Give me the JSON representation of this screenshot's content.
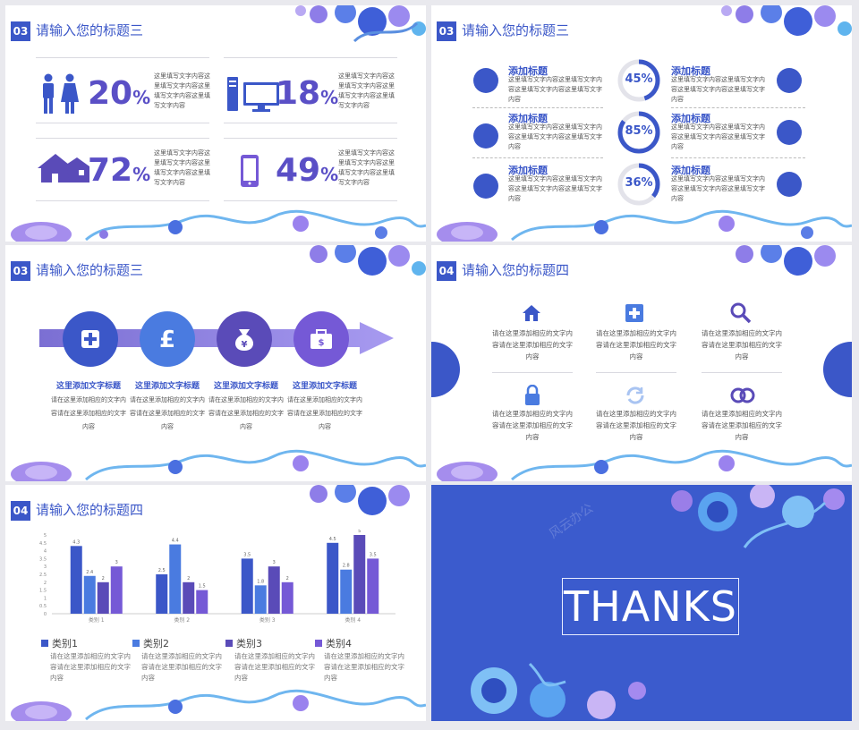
{
  "slide1": {
    "section_number": "03",
    "title": "请输入您的标题三",
    "stats": [
      {
        "value": "20",
        "unit": "%",
        "icon": "people-icon",
        "text": "这里填写文字内容这里填写文字内容这里填写文字内容这里填写文字内容"
      },
      {
        "value": "18",
        "unit": "%",
        "icon": "computer-icon",
        "text": "这里填写文字内容这里填写文字内容这里填写文字内容这里填写文字内容"
      },
      {
        "value": "72",
        "unit": "%",
        "icon": "house-icon",
        "text": "这里填写文字内容这里填写文字内容这里填写文字内容这里填写文字内容"
      },
      {
        "value": "49",
        "unit": "%",
        "icon": "phone-icon",
        "text": "这里填写文字内容这里填写文字内容这里填写文字内容这里填写文字内容"
      }
    ]
  },
  "slide2": {
    "section_number": "03",
    "title": "请输入您的标题三",
    "left_items": [
      {
        "heading": "添加标题",
        "text": "这里填写文字内容这里填写文字内容这里填写文字内容这里填写文字内容"
      },
      {
        "heading": "添加标题",
        "text": "这里填写文字内容这里填写文字内容这里填写文字内容这里填写文字内容"
      },
      {
        "heading": "添加标题",
        "text": "这里填写文字内容这里填写文字内容这里填写文字内容这里填写文字内容"
      }
    ],
    "right_items": [
      {
        "heading": "添加标题",
        "text": "这里填写文字内容这里填写文字内容这里填写文字内容这里填写文字内容"
      },
      {
        "heading": "添加标题",
        "text": "这里填写文字内容这里填写文字内容这里填写文字内容这里填写文字内容"
      },
      {
        "heading": "添加标题",
        "text": "这里填写文字内容这里填写文字内容这里填写文字内容这里填写文字内容"
      }
    ],
    "rings": [
      {
        "label": "45%",
        "fraction": 0.45
      },
      {
        "label": "85%",
        "fraction": 0.85
      },
      {
        "label": "36%",
        "fraction": 0.36
      }
    ]
  },
  "slide3": {
    "section_number": "03",
    "title": "请输入您的标题三",
    "steps": [
      {
        "icon": "medical-plus-icon",
        "color": "#3b57c8",
        "heading": "这里添加文字标题",
        "text": "请在这里添加相应的文字内容请在这里添加相应的文字内容"
      },
      {
        "icon": "pound-icon",
        "color": "#4a7be0",
        "heading": "这里添加文字标题",
        "text": "请在这里添加相应的文字内容请在这里添加相应的文字内容"
      },
      {
        "icon": "money-bag-icon",
        "color": "#5a4bb8",
        "heading": "这里添加文字标题",
        "text": "请在这里添加相应的文字内容请在这里添加相应的文字内容"
      },
      {
        "icon": "briefcase-icon",
        "color": "#7559d6",
        "heading": "这里添加文字标题",
        "text": "请在这里添加相应的文字内容请在这里添加相应的文字内容"
      }
    ]
  },
  "slide4": {
    "section_number": "04",
    "title": "请输入您的标题四",
    "items": [
      {
        "icon": "home-icon",
        "text": "请在这里添加相应的文字内容请在这里添加相应的文字内容"
      },
      {
        "icon": "plus-square-icon",
        "text": "请在这里添加相应的文字内容请在这里添加相应的文字内容"
      },
      {
        "icon": "search-icon",
        "text": "请在这里添加相应的文字内容请在这里添加相应的文字内容"
      },
      {
        "icon": "lock-icon",
        "text": "请在这里添加相应的文字内容请在这里添加相应的文字内容"
      },
      {
        "icon": "refresh-icon",
        "text": "请在这里添加相应的文字内容请在这里添加相应的文字内容"
      },
      {
        "icon": "link-icon",
        "text": "请在这里添加相应的文字内容请在这里添加相应的文字内容"
      }
    ]
  },
  "slide5": {
    "section_number": "04",
    "title": "请输入您的标题四",
    "legend": [
      {
        "label": "类别1",
        "color": "#3b57c8",
        "text": "请在这里添加相应的文字内容请在这里添加相应的文字内容"
      },
      {
        "label": "类别2",
        "color": "#4a7be0",
        "text": "请在这里添加相应的文字内容请在这里添加相应的文字内容"
      },
      {
        "label": "类别3",
        "color": "#5a4bb8",
        "text": "请在这里添加相应的文字内容请在这里添加相应的文字内容"
      },
      {
        "label": "类别4",
        "color": "#7559d6",
        "text": "请在这里添加相应的文字内容请在这里添加相应的文字内容"
      }
    ]
  },
  "chart_data": {
    "type": "bar",
    "categories": [
      "类别 1",
      "类别 2",
      "类别 3",
      "类别 4"
    ],
    "series": [
      {
        "values": [
          4.3,
          2.5,
          3.5,
          4.5
        ],
        "color": "#3b57c8"
      },
      {
        "values": [
          2.4,
          4.4,
          1.8,
          2.8
        ],
        "color": "#4a7be0"
      },
      {
        "values": [
          2,
          2,
          3,
          5
        ],
        "color": "#5a4bb8"
      },
      {
        "values": [
          3,
          1.5,
          2,
          3.5
        ],
        "color": "#7559d6"
      }
    ],
    "ylim": [
      0,
      5
    ],
    "yticks": [
      "0",
      "0.5",
      "1",
      "1.5",
      "2",
      "2.5",
      "3",
      "3.5",
      "4",
      "4.5",
      "5"
    ],
    "grid": false
  },
  "slide6": {
    "thanks": "THANKS",
    "watermark": "风云办公"
  }
}
